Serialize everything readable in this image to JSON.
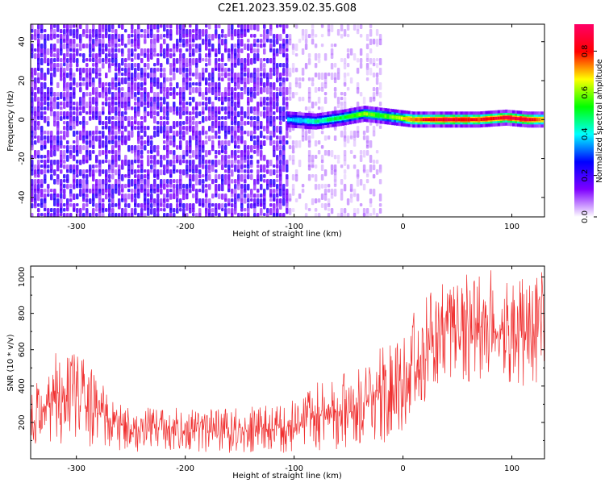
{
  "title": "C2E1.2023.359.02.35.G08",
  "chart_data": [
    {
      "type": "heatmap",
      "xlabel": "Height of straight line (km)",
      "ylabel": "Frequency (Hz)",
      "xlim": [
        -342,
        130
      ],
      "ylim": [
        -50,
        49
      ],
      "x_ticks": [
        -300,
        -200,
        -100,
        0,
        100
      ],
      "y_ticks": [
        -40,
        -20,
        0,
        20,
        40
      ],
      "colorbar": {
        "label": "Normalized spectral amplitude",
        "range": [
          0,
          0.93
        ],
        "ticks": [
          0.0,
          0.2,
          0.4,
          0.6,
          0.8
        ],
        "colors": [
          "#ffffff",
          "#7f00ff",
          "#0000ff",
          "#00ffff",
          "#00ff00",
          "#ffff00",
          "#ff0000",
          "#ff0066"
        ]
      },
      "signal_track": [
        {
          "x": -105,
          "freq": 0,
          "amp": 0.35
        },
        {
          "x": -80,
          "freq": -1,
          "amp": 0.45
        },
        {
          "x": -55,
          "freq": 1,
          "amp": 0.5
        },
        {
          "x": -35,
          "freq": 3,
          "amp": 0.6
        },
        {
          "x": -20,
          "freq": 2,
          "amp": 0.55
        },
        {
          "x": -5,
          "freq": 1,
          "amp": 0.6
        },
        {
          "x": 10,
          "freq": 0,
          "amp": 0.75
        },
        {
          "x": 40,
          "freq": 0,
          "amp": 0.85
        },
        {
          "x": 70,
          "freq": 0,
          "amp": 0.8
        },
        {
          "x": 95,
          "freq": 1,
          "amp": 0.85
        },
        {
          "x": 115,
          "freq": 0,
          "amp": 0.85
        },
        {
          "x": 130,
          "freq": 0,
          "amp": 0.7
        }
      ],
      "noise_regions": [
        {
          "x": [
            -342,
            -105
          ],
          "freq": [
            -50,
            49
          ],
          "amp": 0.18
        },
        {
          "x": [
            -105,
            -20
          ],
          "freq": [
            -50,
            49
          ],
          "amp": 0.07
        }
      ]
    },
    {
      "type": "line",
      "xlabel": "Height of straight line (km)",
      "ylabel": "SNR (10 * v/v)",
      "xlim": [
        -342,
        130
      ],
      "ylim": [
        0,
        1060
      ],
      "x_ticks": [
        -300,
        -200,
        -100,
        0,
        100
      ],
      "y_ticks": [
        200,
        400,
        600,
        800,
        1000
      ],
      "line_color": "#f03030",
      "envelope": [
        {
          "x": -342,
          "min": 60,
          "max": 430
        },
        {
          "x": -310,
          "min": 40,
          "max": 640
        },
        {
          "x": -290,
          "min": 50,
          "max": 540
        },
        {
          "x": -270,
          "min": 50,
          "max": 360
        },
        {
          "x": -250,
          "min": 40,
          "max": 290
        },
        {
          "x": -200,
          "min": 30,
          "max": 280
        },
        {
          "x": -150,
          "min": 30,
          "max": 280
        },
        {
          "x": -110,
          "min": 30,
          "max": 310
        },
        {
          "x": -85,
          "min": 40,
          "max": 430
        },
        {
          "x": -60,
          "min": 50,
          "max": 470
        },
        {
          "x": -40,
          "min": 60,
          "max": 540
        },
        {
          "x": -20,
          "min": 80,
          "max": 620
        },
        {
          "x": 0,
          "min": 150,
          "max": 720
        },
        {
          "x": 15,
          "min": 260,
          "max": 870
        },
        {
          "x": 30,
          "min": 400,
          "max": 950
        },
        {
          "x": 50,
          "min": 440,
          "max": 1000
        },
        {
          "x": 80,
          "min": 400,
          "max": 1050
        },
        {
          "x": 100,
          "min": 380,
          "max": 990
        },
        {
          "x": 130,
          "min": 430,
          "max": 1050
        }
      ]
    }
  ]
}
